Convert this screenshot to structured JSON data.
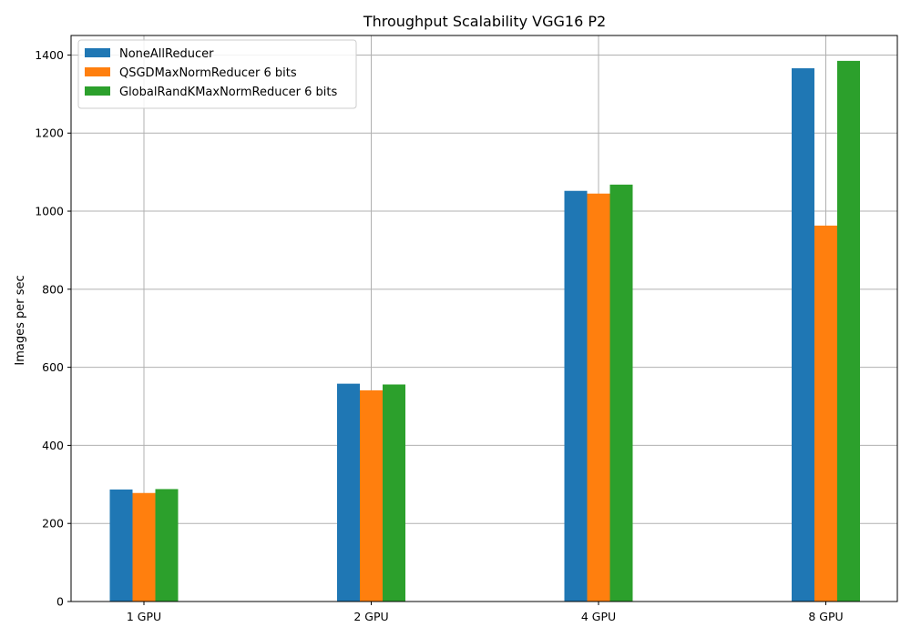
{
  "chart_data": {
    "type": "bar",
    "title": "Throughput Scalability VGG16 P2",
    "xlabel": "",
    "ylabel": "Images per sec",
    "categories": [
      "1 GPU",
      "2 GPU",
      "4 GPU",
      "8 GPU"
    ],
    "ylim": [
      0,
      1450
    ],
    "yticks": [
      0,
      200,
      400,
      600,
      800,
      1000,
      1200,
      1400
    ],
    "grid": true,
    "legend_position": "top-left",
    "series": [
      {
        "name": "NoneAllReducer",
        "color": "#1f77b4",
        "values": [
          287,
          558,
          1052,
          1366
        ]
      },
      {
        "name": "QSGDMaxNormReducer 6 bits",
        "color": "#ff7f0e",
        "values": [
          278,
          541,
          1045,
          963
        ]
      },
      {
        "name": "GlobalRandKMaxNormReducer 6 bits",
        "color": "#2ca02c",
        "values": [
          288,
          556,
          1068,
          1385
        ]
      }
    ]
  }
}
